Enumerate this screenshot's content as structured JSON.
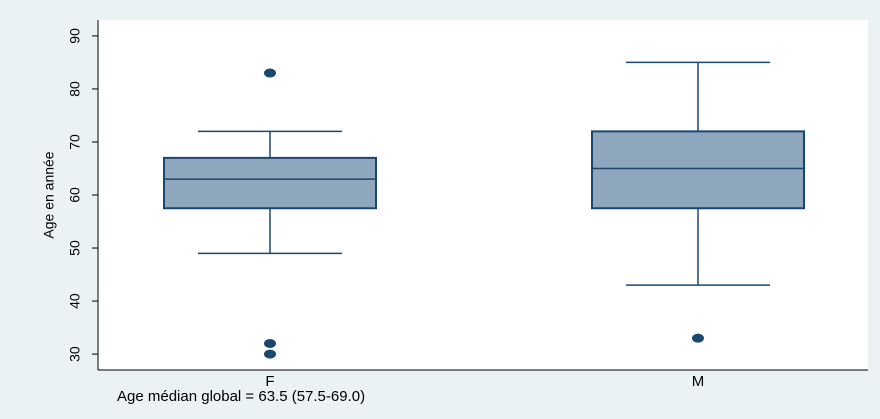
{
  "colors": {
    "background": "#eaf2f3",
    "plot_background": "#ffffff",
    "box_fill": "#8ea7bd",
    "box_stroke": "#1a476f",
    "axis": "#000000"
  },
  "chart_data": {
    "type": "box",
    "ylabel": "Age en année",
    "ylim": [
      27,
      93
    ],
    "yticks": [
      30,
      40,
      50,
      60,
      70,
      80,
      90
    ],
    "grid": false,
    "categories": [
      "F",
      "M"
    ],
    "boxes": [
      {
        "category": "F",
        "whisker_low": 49,
        "q1": 57.5,
        "median": 63,
        "q3": 67,
        "whisker_high": 72,
        "outliers": [
          83,
          32,
          30
        ]
      },
      {
        "category": "M",
        "whisker_low": 43,
        "q1": 57.5,
        "median": 65,
        "q3": 72,
        "whisker_high": 85,
        "outliers": [
          33
        ]
      }
    ],
    "note": "Age médian global = 63.5 (57.5-69.0)"
  }
}
